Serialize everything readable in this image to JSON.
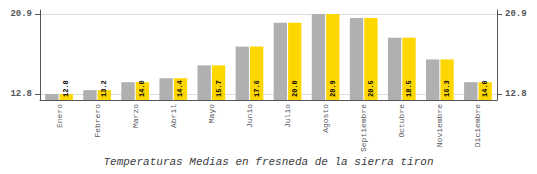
{
  "chart_data": {
    "type": "bar",
    "title": "Temperaturas Medias en fresneda de la sierra tiron",
    "categories": [
      "Enero",
      "Febrero",
      "Marzo",
      "Abril",
      "Mayo",
      "Junio",
      "Julio",
      "Agosto",
      "Septiembre",
      "Octubre",
      "Noviembre",
      "Diciembre"
    ],
    "series": [
      {
        "color": "#B0B0B0",
        "values": [
          12.8,
          13.2,
          14.0,
          14.4,
          15.7,
          17.6,
          20.0,
          20.9,
          20.5,
          18.5,
          16.3,
          14.0
        ]
      },
      {
        "color": "#FFD700",
        "values": [
          12.8,
          13.2,
          14.0,
          14.4,
          15.7,
          17.6,
          20.0,
          20.9,
          20.5,
          18.5,
          16.3,
          14.0
        ],
        "data_labels": true,
        "value_labels": [
          "12.8",
          "13.2",
          "14.0",
          "14.4",
          "15.7",
          "17.6",
          "20.0",
          "20.9",
          "20.5",
          "18.5",
          "16.3",
          "14.0"
        ]
      }
    ],
    "ylim": [
      12.2,
      21.3
    ],
    "yticks": [
      12.8,
      20.9
    ],
    "y2lim": [
      12.2,
      21.3
    ],
    "y2ticks": [
      12.8,
      20.9
    ],
    "grid": true
  }
}
